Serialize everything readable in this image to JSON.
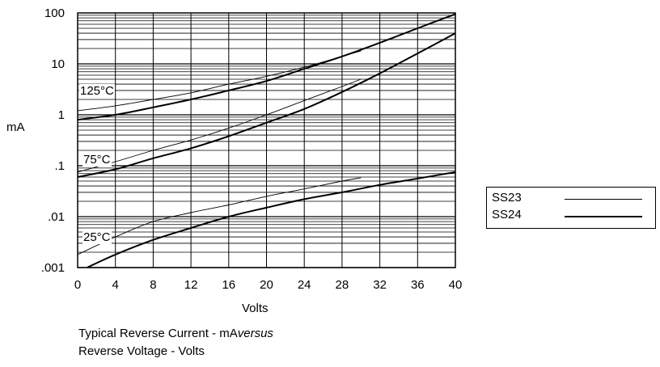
{
  "chart_data": {
    "type": "line",
    "title": "Typical Reverse Current - mA versus Reverse Voltage - Volts",
    "caption_line1_prefix": "Typical Reverse Current - mA",
    "caption_line1_italic": "versus",
    "caption_line2": "Reverse Voltage - Volts",
    "xlabel": "Volts",
    "ylabel": "mA",
    "xlim": [
      0,
      40
    ],
    "ylim": [
      0.001,
      100
    ],
    "y_scale": "log",
    "grid": true,
    "x_ticks": [
      0,
      4,
      8,
      12,
      16,
      20,
      24,
      28,
      32,
      36,
      40
    ],
    "x_tick_labels": [
      "0",
      "4",
      "8",
      "12",
      "16",
      "20",
      "24",
      "28",
      "32",
      "36",
      "40"
    ],
    "y_ticks": [
      0.001,
      0.01,
      0.1,
      1,
      10,
      100
    ],
    "y_tick_labels": [
      ".001",
      ".01",
      ".1",
      "1",
      "10",
      "100"
    ],
    "annotations": [
      "125°C",
      "75°C",
      "25°C"
    ],
    "legend_position": "right",
    "series": [
      {
        "name": "SS23",
        "temperature": "125°C",
        "style": "thin",
        "x": [
          0,
          4,
          8,
          12,
          16,
          20,
          24,
          28,
          30
        ],
        "y": [
          1.2,
          1.5,
          2.0,
          2.7,
          4.0,
          5.7,
          8.6,
          14,
          18
        ]
      },
      {
        "name": "SS24",
        "temperature": "125°C",
        "style": "thick",
        "x": [
          0,
          4,
          8,
          12,
          16,
          20,
          24,
          28,
          32,
          36,
          40
        ],
        "y": [
          0.8,
          1.0,
          1.4,
          2.0,
          3.0,
          4.6,
          8.0,
          14,
          26,
          50,
          95
        ]
      },
      {
        "name": "SS23",
        "temperature": "75°C",
        "style": "thin",
        "x": [
          0,
          4,
          8,
          12,
          16,
          20,
          24,
          28,
          30
        ],
        "y": [
          0.075,
          0.12,
          0.2,
          0.32,
          0.55,
          1.0,
          1.9,
          3.6,
          5.0
        ]
      },
      {
        "name": "SS24",
        "temperature": "75°C",
        "style": "thick",
        "x": [
          0,
          4,
          8,
          12,
          16,
          20,
          24,
          28,
          32,
          36,
          40
        ],
        "y": [
          0.06,
          0.085,
          0.14,
          0.22,
          0.38,
          0.7,
          1.3,
          2.8,
          6.5,
          16,
          40
        ]
      },
      {
        "name": "SS23",
        "temperature": "25°C",
        "style": "thin",
        "x": [
          0,
          4,
          8,
          12,
          16,
          20,
          24,
          28,
          30
        ],
        "y": [
          0.0018,
          0.004,
          0.008,
          0.012,
          0.017,
          0.025,
          0.035,
          0.05,
          0.058
        ]
      },
      {
        "name": "SS24",
        "temperature": "25°C",
        "style": "thick",
        "x": [
          1,
          4,
          8,
          12,
          16,
          20,
          24,
          28,
          32,
          36,
          40
        ],
        "y": [
          0.001,
          0.0018,
          0.0035,
          0.006,
          0.01,
          0.015,
          0.022,
          0.03,
          0.042,
          0.056,
          0.075
        ]
      }
    ]
  },
  "legend": {
    "items": [
      {
        "label": "SS23",
        "style": "thin"
      },
      {
        "label": "SS24",
        "style": "thick"
      }
    ]
  }
}
